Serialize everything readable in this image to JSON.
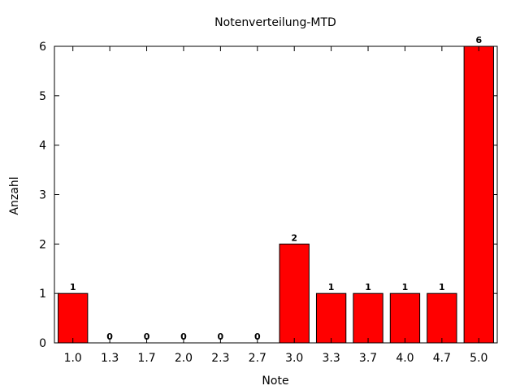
{
  "chart_data": {
    "type": "bar",
    "title": "Notenverteilung-MTD",
    "xlabel": "Note",
    "ylabel": "Anzahl",
    "categories": [
      "1.0",
      "1.3",
      "1.7",
      "2.0",
      "2.3",
      "2.7",
      "3.0",
      "3.3",
      "3.7",
      "4.0",
      "4.7",
      "5.0"
    ],
    "values": [
      1,
      0,
      0,
      0,
      0,
      0,
      2,
      1,
      1,
      1,
      1,
      6
    ],
    "ylim": [
      0,
      6
    ],
    "yticks": [
      "0",
      "1",
      "2",
      "3",
      "4",
      "5",
      "6"
    ],
    "bar_color": "#ff0000",
    "grid": false,
    "legend": "none"
  }
}
